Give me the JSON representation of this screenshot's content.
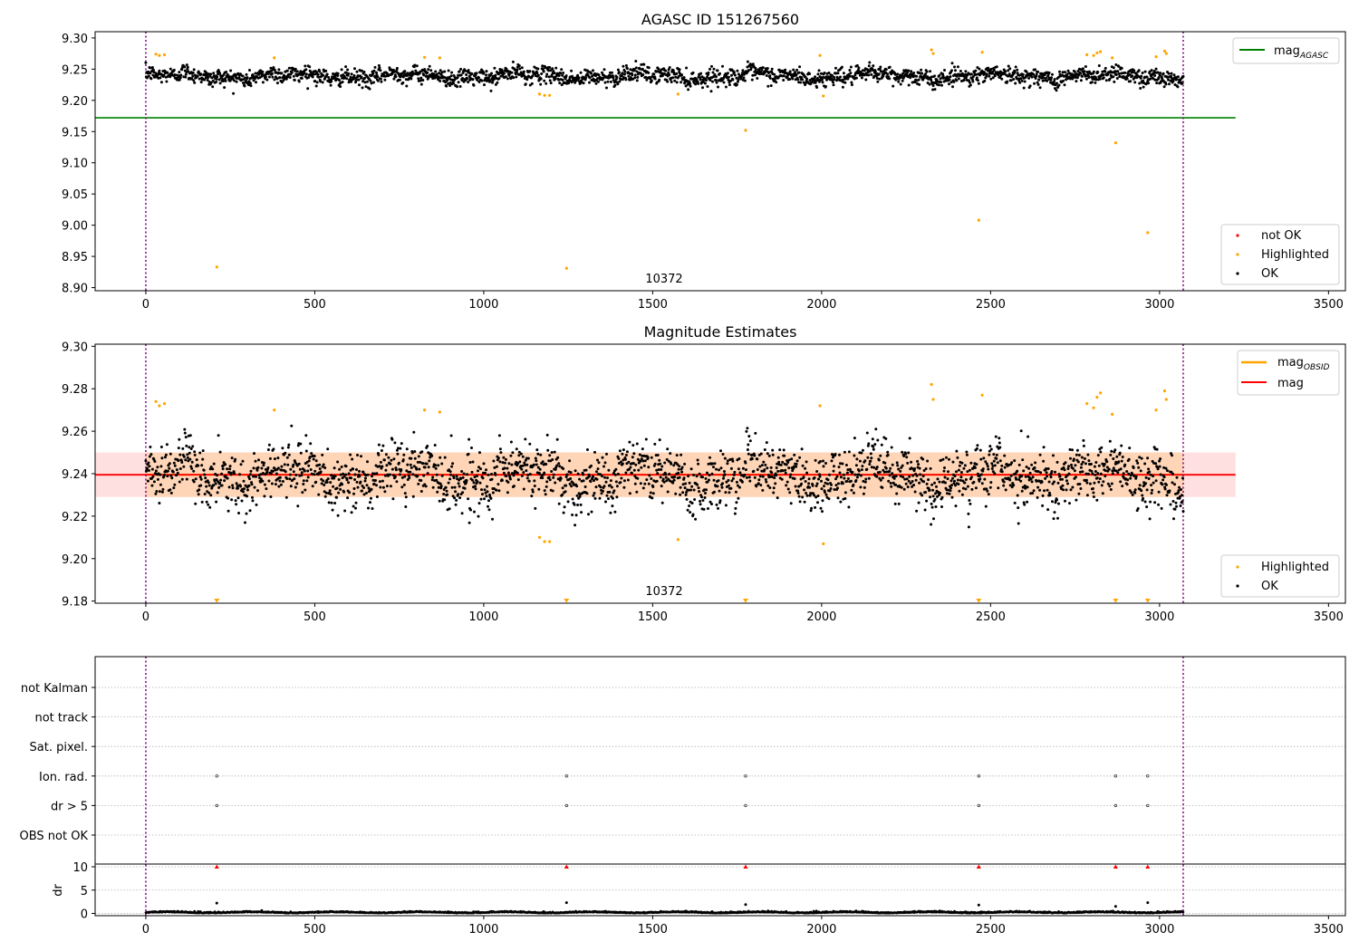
{
  "chart_data": [
    {
      "type": "scatter",
      "title": "AGASC ID 151267560",
      "xlim": [
        -150,
        3550
      ],
      "ylim": [
        8.895,
        9.31
      ],
      "x_ticks": [
        0,
        500,
        1000,
        1500,
        2000,
        2500,
        3000,
        3500
      ],
      "y_ticks": [
        8.9,
        8.95,
        9.0,
        9.05,
        9.1,
        9.15,
        9.2,
        9.25,
        9.3
      ],
      "x_tick_labels": [
        "0",
        "500",
        "1000",
        "1500",
        "2000",
        "2500",
        "3000",
        "3500"
      ],
      "y_tick_labels": [
        "8.90",
        "8.95",
        "9.00",
        "9.05",
        "9.10",
        "9.15",
        "9.20",
        "9.25",
        "9.30"
      ],
      "annotation": "10372",
      "observation_boundaries": [
        0,
        3070
      ],
      "reference_line": {
        "name": "mag_AGASC",
        "value": 9.172,
        "x_range": [
          -150,
          3225
        ],
        "color": "#008000"
      },
      "ok_series": {
        "name": "OK",
        "color": "#000000",
        "n_points": 2300,
        "x_range": [
          0,
          3070
        ],
        "mean": 9.239,
        "scatter": 0.009
      },
      "highlighted": {
        "name": "Highlighted",
        "color": "#ffa500",
        "points": [
          [
            30,
            9.274
          ],
          [
            40,
            9.272
          ],
          [
            55,
            9.273
          ],
          [
            210,
            8.933
          ],
          [
            380,
            9.268
          ],
          [
            825,
            9.269
          ],
          [
            870,
            9.268
          ],
          [
            1165,
            9.21
          ],
          [
            1180,
            9.208
          ],
          [
            1195,
            9.208
          ],
          [
            1245,
            8.931
          ],
          [
            1575,
            9.21
          ],
          [
            1775,
            9.152
          ],
          [
            1995,
            9.272
          ],
          [
            2005,
            9.207
          ],
          [
            2325,
            9.281
          ],
          [
            2330,
            9.275
          ],
          [
            2465,
            9.008
          ],
          [
            2475,
            9.277
          ],
          [
            2785,
            9.273
          ],
          [
            2805,
            9.272
          ],
          [
            2815,
            9.276
          ],
          [
            2825,
            9.278
          ],
          [
            2860,
            9.268
          ],
          [
            2870,
            9.132
          ],
          [
            2965,
            8.988
          ],
          [
            2990,
            9.27
          ],
          [
            3015,
            9.279
          ],
          [
            3020,
            9.275
          ]
        ]
      },
      "legend_lines": [
        {
          "label": "mag",
          "subscript": "AGASC",
          "color": "#008000"
        }
      ],
      "legend_points": [
        {
          "label": "not OK",
          "color": "#ff0000"
        },
        {
          "label": "Highlighted",
          "color": "#ffa500"
        },
        {
          "label": "OK",
          "color": "#000000"
        }
      ],
      "legend_placement": {
        "lines": "upper right",
        "points": "lower right"
      }
    },
    {
      "type": "scatter",
      "title": "Magnitude Estimates",
      "xlim": [
        -150,
        3550
      ],
      "ylim": [
        9.179,
        9.301
      ],
      "x_ticks": [
        0,
        500,
        1000,
        1500,
        2000,
        2500,
        3000,
        3500
      ],
      "y_ticks": [
        9.18,
        9.2,
        9.22,
        9.24,
        9.26,
        9.28,
        9.3
      ],
      "x_tick_labels": [
        "0",
        "500",
        "1000",
        "1500",
        "2000",
        "2500",
        "3000",
        "3500"
      ],
      "y_tick_labels": [
        "9.18",
        "9.20",
        "9.22",
        "9.24",
        "9.26",
        "9.28",
        "9.30"
      ],
      "annotation": "10372",
      "observation_boundaries": [
        0,
        3070
      ],
      "mag_line": {
        "name": "mag",
        "value": 9.2395,
        "x_range": [
          -150,
          3225
        ],
        "color": "#ff0000"
      },
      "mag_band": {
        "range": [
          9.229,
          9.25
        ],
        "x_range": [
          -150,
          3225
        ],
        "color": "#ff0000"
      },
      "obsid_line": {
        "name": "mag_OBSID",
        "value": 9.2395,
        "x_range": [
          0,
          3070
        ],
        "color": "#ffa500"
      },
      "obsid_band": {
        "range": [
          9.229,
          9.25
        ],
        "x_range": [
          0,
          3070
        ],
        "color": "#ffa500"
      },
      "ok_series": {
        "name": "OK",
        "color": "#000000",
        "n_points": 2300,
        "x_range": [
          0,
          3070
        ],
        "mean": 9.239,
        "scatter": 0.009
      },
      "highlighted": {
        "name": "Highlighted",
        "color": "#ffa500",
        "points": [
          [
            30,
            9.274
          ],
          [
            40,
            9.272
          ],
          [
            55,
            9.273
          ],
          [
            380,
            9.27
          ],
          [
            825,
            9.27
          ],
          [
            870,
            9.269
          ],
          [
            1165,
            9.21
          ],
          [
            1180,
            9.208
          ],
          [
            1195,
            9.208
          ],
          [
            1575,
            9.209
          ],
          [
            1995,
            9.272
          ],
          [
            2005,
            9.207
          ],
          [
            2325,
            9.282
          ],
          [
            2330,
            9.275
          ],
          [
            2475,
            9.277
          ],
          [
            2785,
            9.273
          ],
          [
            2805,
            9.271
          ],
          [
            2815,
            9.276
          ],
          [
            2825,
            9.278
          ],
          [
            2860,
            9.268
          ],
          [
            2990,
            9.27
          ],
          [
            3015,
            9.279
          ],
          [
            3020,
            9.275
          ]
        ]
      },
      "below_range_markers": [
        210,
        1245,
        1775,
        2465,
        2870,
        2965
      ],
      "legend_lines": [
        {
          "label": "mag",
          "subscript": "OBSID",
          "color": "#ffa500"
        },
        {
          "label": "mag",
          "subscript": "",
          "color": "#ff0000"
        }
      ],
      "legend_points": [
        {
          "label": "Highlighted",
          "color": "#ffa500"
        },
        {
          "label": "OK",
          "color": "#000000"
        }
      ],
      "legend_placement": {
        "lines": "upper right",
        "points": "lower right"
      }
    },
    {
      "type": "scatter",
      "title": "",
      "xlim": [
        -150,
        3550
      ],
      "x_ticks": [
        0,
        500,
        1000,
        1500,
        2000,
        2500,
        3000,
        3500
      ],
      "x_tick_labels": [
        "0",
        "500",
        "1000",
        "1500",
        "2000",
        "2500",
        "3000",
        "3500"
      ],
      "flag_rows": [
        "not Kalman",
        "not track",
        "Sat. pixel.",
        "Ion. rad.",
        "dr > 5",
        "OBS not OK"
      ],
      "flag_points": {
        "Ion. rad.": [
          210,
          1245,
          1775,
          2465,
          2870,
          2965
        ],
        "dr > 5": [
          210,
          1245,
          1775,
          2465,
          2870,
          2965
        ]
      },
      "observation_boundaries": [
        0,
        3070
      ],
      "dr": {
        "ylabel": "dr",
        "ylim": [
          -0.5,
          11
        ],
        "y_ticks": [
          0,
          5,
          10
        ],
        "y_tick_labels": [
          "0",
          "5",
          "10"
        ],
        "clipped_points_x": [
          210,
          1245,
          1775,
          2465,
          2870,
          2965
        ],
        "clipped_value": 10,
        "outlier_points": [
          [
            210,
            2.2
          ],
          [
            1245,
            2.3
          ],
          [
            1775,
            1.9
          ],
          [
            2465,
            1.8
          ],
          [
            2870,
            1.5
          ],
          [
            2965,
            2.3
          ]
        ],
        "baseline": {
          "n_points": 2300,
          "x_range": [
            0,
            3070
          ],
          "typical": 0.15
        }
      }
    }
  ]
}
